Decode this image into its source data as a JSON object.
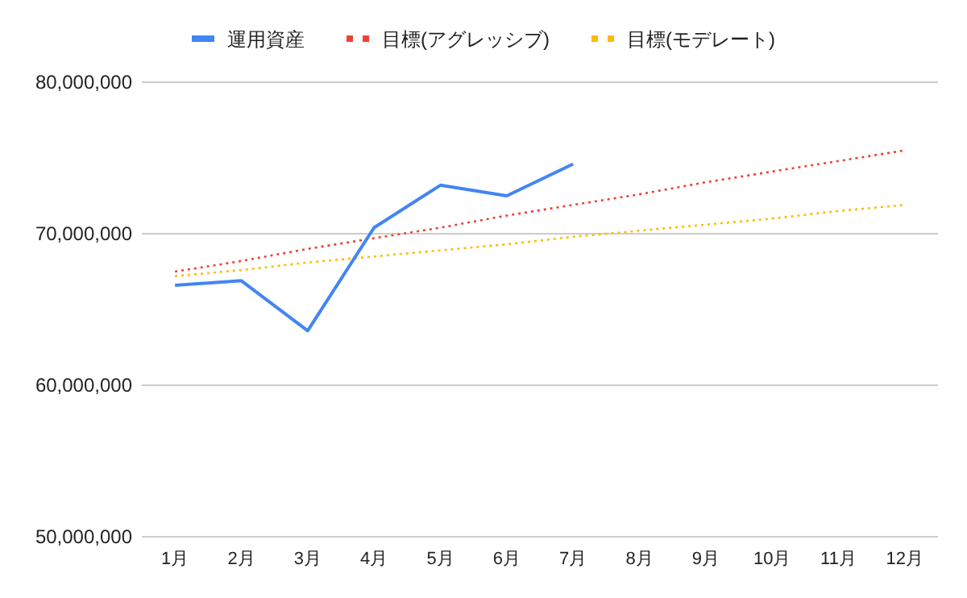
{
  "chart_data": {
    "type": "line",
    "categories": [
      "1月",
      "2月",
      "3月",
      "4月",
      "5月",
      "6月",
      "7月",
      "8月",
      "9月",
      "10月",
      "11月",
      "12月"
    ],
    "series": [
      {
        "name": "運用資産",
        "color": "#4285f4",
        "line_style": "solid",
        "values": [
          66600000,
          66900000,
          63600000,
          70400000,
          73200000,
          72500000,
          74600000,
          null,
          null,
          null,
          null,
          null
        ]
      },
      {
        "name": "目標(アグレッシブ)",
        "color": "#ea4335",
        "line_style": "dotted",
        "values": [
          67500000,
          68200000,
          69000000,
          69700000,
          70400000,
          71200000,
          71900000,
          72600000,
          73400000,
          74100000,
          74800000,
          75500000
        ]
      },
      {
        "name": "目標(モデレート)",
        "color": "#fbbc04",
        "line_style": "dotted",
        "values": [
          67200000,
          67600000,
          68100000,
          68500000,
          68900000,
          69300000,
          69800000,
          70200000,
          70600000,
          71000000,
          71500000,
          71900000
        ]
      }
    ],
    "ylim": [
      50000000,
      80000000
    ],
    "yticks": [
      {
        "value": 50000000,
        "label": "50,000,000"
      },
      {
        "value": 60000000,
        "label": "60,000,000"
      },
      {
        "value": 70000000,
        "label": "70,000,000"
      },
      {
        "value": 80000000,
        "label": "80,000,000"
      }
    ],
    "grid": "y",
    "legend": "top"
  }
}
